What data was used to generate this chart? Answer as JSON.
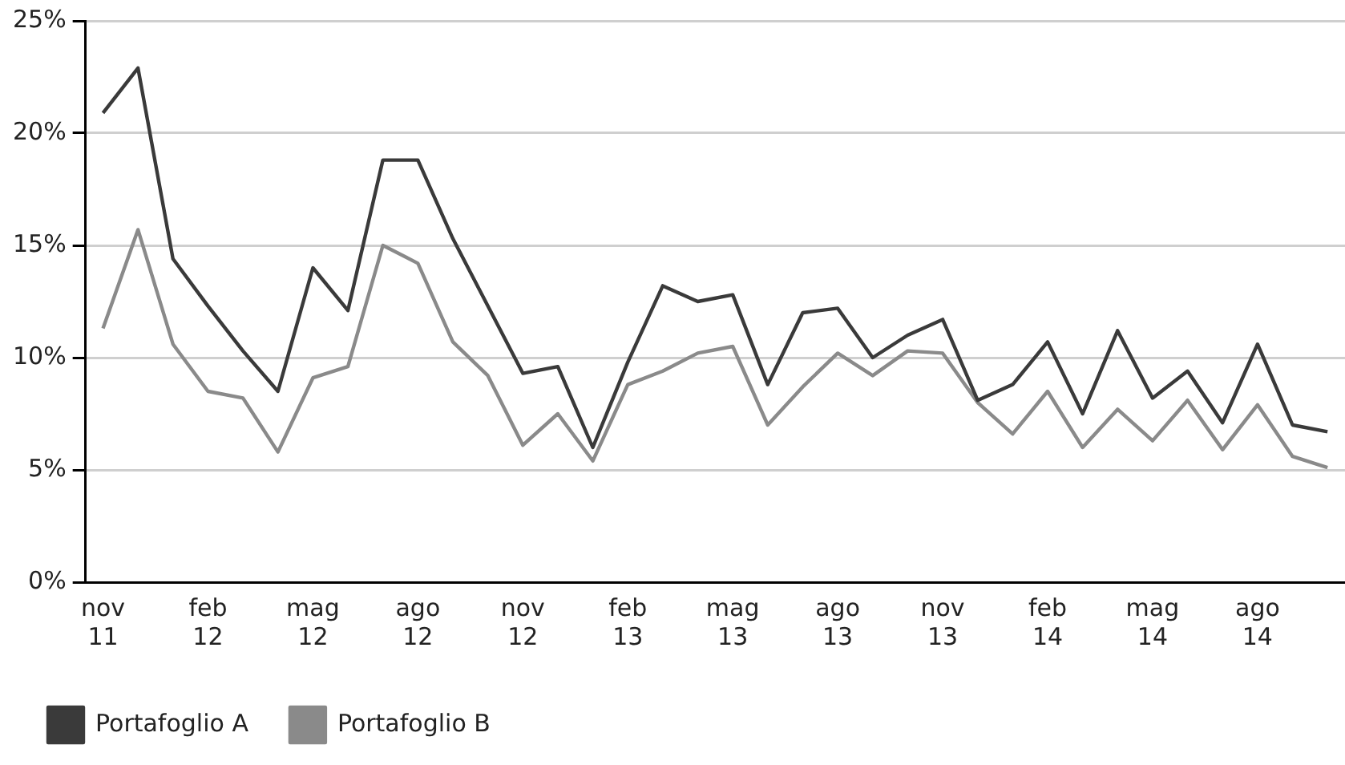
{
  "chart_data": {
    "type": "line",
    "categories": [
      "nov 11",
      null,
      null,
      "feb 12",
      null,
      null,
      "mag 12",
      null,
      null,
      "ago 12",
      null,
      null,
      "nov 12",
      null,
      null,
      "feb 13",
      null,
      null,
      "mag 13",
      null,
      null,
      "ago 13",
      null,
      null,
      "nov 13",
      null,
      null,
      "feb 14",
      null,
      null,
      "mag 14",
      null,
      null,
      "ago 14",
      null,
      null
    ],
    "series": [
      {
        "name": "Portafoglio A",
        "color": "#3a3a3a",
        "values": [
          20.9,
          22.9,
          14.4,
          12.3,
          10.3,
          8.5,
          14.0,
          12.1,
          18.8,
          18.8,
          15.3,
          12.3,
          9.3,
          9.6,
          6.0,
          9.8,
          13.2,
          12.5,
          12.8,
          8.8,
          12.0,
          12.2,
          10.0,
          11.0,
          11.7,
          8.1,
          8.8,
          10.7,
          7.5,
          11.2,
          8.2,
          9.4,
          7.1,
          10.6,
          7.0,
          6.7
        ]
      },
      {
        "name": "Portafoglio B",
        "color": "#8a8a8a",
        "values": [
          11.3,
          15.7,
          10.6,
          8.5,
          8.2,
          5.8,
          9.1,
          9.6,
          15.0,
          14.2,
          10.7,
          9.2,
          6.1,
          7.5,
          5.4,
          8.8,
          9.4,
          10.2,
          10.5,
          7.0,
          8.7,
          10.2,
          9.2,
          10.3,
          10.2,
          8.0,
          6.6,
          8.5,
          6.0,
          7.7,
          6.3,
          8.1,
          5.9,
          7.9,
          5.6,
          5.1
        ]
      }
    ],
    "ylim": [
      0,
      25
    ],
    "yticks": [
      {
        "value": 0,
        "label": "0%"
      },
      {
        "value": 5,
        "label": "5%"
      },
      {
        "value": 10,
        "label": "10%"
      },
      {
        "value": 15,
        "label": "15%"
      },
      {
        "value": 20,
        "label": "20%"
      },
      {
        "value": 25,
        "label": "25%"
      }
    ],
    "grid": "y",
    "legend": "bottom left",
    "marker": "none",
    "line_style": "solid"
  }
}
